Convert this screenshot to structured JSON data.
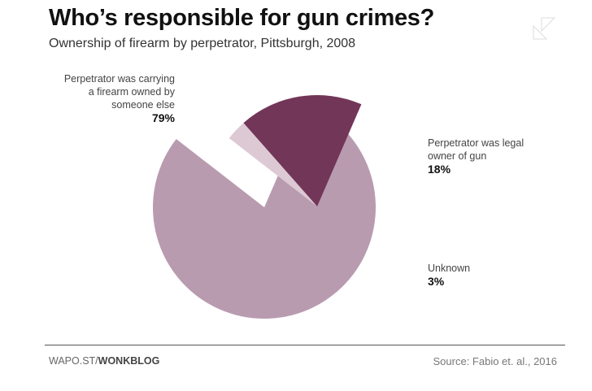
{
  "chart_data": {
    "type": "pie",
    "title": "Who’s responsible for gun crimes?",
    "subtitle": "Ownership of firearm by perpetrator, Pittsburgh, 2008",
    "slices": [
      {
        "label": "Perpetrator was carrying a firearm owned by someone else",
        "value": 79,
        "value_label": "79%",
        "color": "#b99bb0",
        "exploded": false
      },
      {
        "label": "Perpetrator was legal owner of gun",
        "value": 18,
        "value_label": "18%",
        "color": "#723658",
        "exploded": true
      },
      {
        "label": "Unknown",
        "value": 3,
        "value_label": "3%",
        "color": "#ddc9d4",
        "exploded": true
      }
    ]
  },
  "footer": {
    "credit_prefix": "WAPO.ST/",
    "credit_bold": "WONKBLOG",
    "source": "Source: Fabio et. al., 2016"
  }
}
